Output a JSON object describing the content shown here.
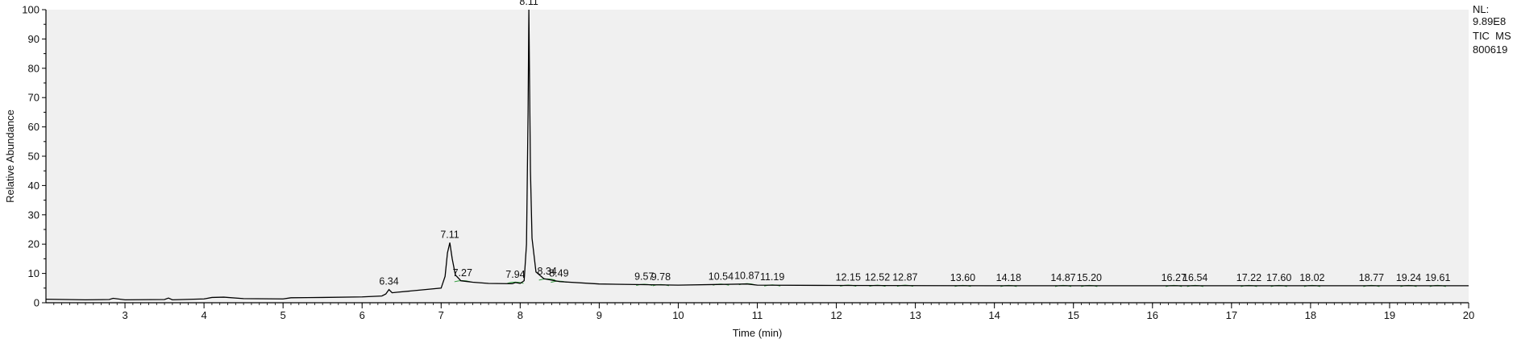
{
  "chart_data": {
    "type": "line",
    "xlabel": "Time (min)",
    "ylabel": "Relative Abundance",
    "xlim": [
      2.0,
      20.0
    ],
    "ylim": [
      0,
      100
    ],
    "x_ticks": [
      3,
      4,
      5,
      6,
      7,
      8,
      9,
      10,
      11,
      12,
      13,
      14,
      15,
      16,
      17,
      18,
      19,
      20
    ],
    "y_ticks": [
      0,
      10,
      20,
      30,
      40,
      50,
      60,
      70,
      80,
      90,
      100
    ],
    "grid": false,
    "background": "#f0f0f0",
    "line_color": "#000000",
    "integration_color": "#2e9a3a",
    "trace": {
      "x": [
        2.0,
        2.5,
        2.8,
        2.85,
        3.0,
        3.5,
        3.55,
        3.6,
        4.0,
        4.1,
        4.25,
        4.5,
        5.0,
        5.1,
        5.5,
        6.0,
        6.25,
        6.3,
        6.34,
        6.38,
        6.45,
        7.0,
        7.05,
        7.08,
        7.11,
        7.14,
        7.18,
        7.25,
        7.4,
        7.6,
        7.9,
        7.94,
        8.0,
        8.05,
        8.08,
        8.1,
        8.11,
        8.12,
        8.13,
        8.15,
        8.2,
        8.3,
        8.5,
        9.0,
        10.0,
        10.87,
        11.0,
        12.0,
        14.0,
        16.0,
        18.0,
        20.0
      ],
      "y": [
        1.2,
        1.0,
        1.1,
        1.5,
        1.0,
        1.1,
        1.6,
        1.0,
        1.3,
        1.8,
        1.9,
        1.4,
        1.3,
        1.7,
        1.8,
        2.0,
        2.3,
        3.0,
        4.5,
        3.4,
        3.6,
        5.0,
        9.0,
        17.0,
        20.5,
        15.0,
        9.5,
        7.5,
        7.0,
        6.6,
        6.5,
        6.9,
        6.6,
        7.5,
        20.0,
        65.0,
        100.0,
        72.0,
        45.0,
        22.0,
        10.5,
        8.2,
        7.2,
        6.4,
        6.0,
        6.4,
        6.0,
        5.9,
        5.8,
        5.8,
        5.8,
        5.8
      ]
    },
    "peak_labels": [
      {
        "x": 6.34,
        "text": "6.34"
      },
      {
        "x": 7.11,
        "text": "7.11"
      },
      {
        "x": 7.27,
        "text": "7.27"
      },
      {
        "x": 7.94,
        "text": "7.94"
      },
      {
        "x": 8.11,
        "text": "8.11"
      },
      {
        "x": 8.34,
        "text": "8.34"
      },
      {
        "x": 8.49,
        "text": "8.49"
      },
      {
        "x": 9.57,
        "text": "9.57"
      },
      {
        "x": 9.78,
        "text": "9.78"
      },
      {
        "x": 10.54,
        "text": "10.54"
      },
      {
        "x": 10.87,
        "text": "10.87"
      },
      {
        "x": 11.19,
        "text": "11.19"
      },
      {
        "x": 12.15,
        "text": "12.15"
      },
      {
        "x": 12.52,
        "text": "12.52"
      },
      {
        "x": 12.87,
        "text": "12.87"
      },
      {
        "x": 13.6,
        "text": "13.60"
      },
      {
        "x": 14.18,
        "text": "14.18"
      },
      {
        "x": 14.87,
        "text": "14.87"
      },
      {
        "x": 15.2,
        "text": "15.20"
      },
      {
        "x": 16.27,
        "text": "16.27"
      },
      {
        "x": 16.54,
        "text": "16.54"
      },
      {
        "x": 17.22,
        "text": "17.22"
      },
      {
        "x": 17.6,
        "text": "17.60"
      },
      {
        "x": 18.02,
        "text": "18.02"
      },
      {
        "x": 18.77,
        "text": "18.77"
      },
      {
        "x": 19.24,
        "text": "19.24"
      },
      {
        "x": 19.61,
        "text": "19.61"
      }
    ]
  },
  "side_info": {
    "nl_label": "NL:",
    "nl_value": "9.89E8",
    "scan_filter": "TIC  MS",
    "sample_name": "800619"
  }
}
